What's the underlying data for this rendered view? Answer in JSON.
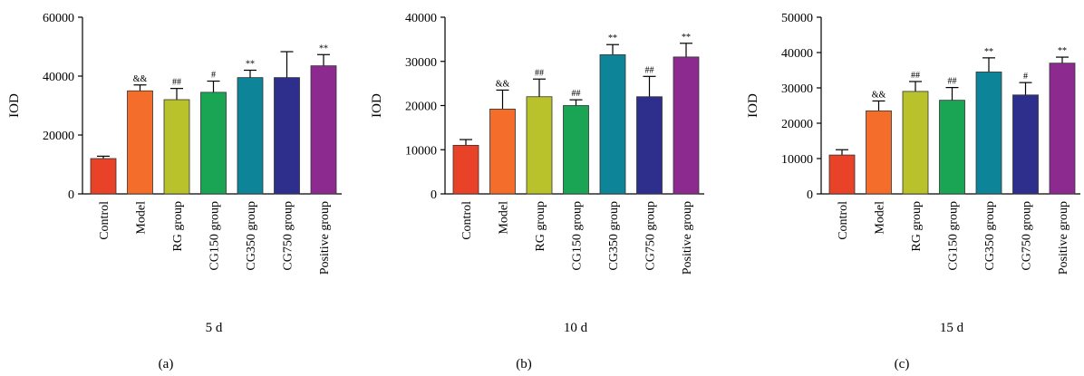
{
  "colors": {
    "Control": "#e84328",
    "Model": "#f46d2a",
    "RG group": "#b9c12b",
    "CG150 group": "#1aa555",
    "CG350 group": "#0d8498",
    "CG750 group": "#2e2f8c",
    "Positive group": "#8c2a90"
  },
  "chart_data": [
    {
      "type": "bar",
      "panel_label": "(a)",
      "xlabel": "5 d",
      "ylabel": "IOD",
      "ylim": [
        0,
        60000
      ],
      "yticks": [
        0,
        20000,
        40000,
        60000
      ],
      "categories": [
        "Control",
        "Model",
        "RG group",
        "CG150 group",
        "CG350 group",
        "CG750 group",
        "Positive group"
      ],
      "values": [
        12000,
        35000,
        32000,
        34500,
        39500,
        39500,
        43500
      ],
      "errors": [
        800,
        2000,
        3800,
        3800,
        2500,
        8800,
        3800
      ],
      "annotations": [
        "",
        "&&",
        "##",
        "#",
        "**",
        "",
        "**"
      ]
    },
    {
      "type": "bar",
      "panel_label": "(b)",
      "xlabel": "10 d",
      "ylabel": "IOD",
      "ylim": [
        0,
        40000
      ],
      "yticks": [
        0,
        10000,
        20000,
        30000,
        40000
      ],
      "categories": [
        "Control",
        "Model",
        "RG group",
        "CG150 group",
        "CG350 group",
        "CG750 group",
        "Positive group"
      ],
      "values": [
        11000,
        19200,
        22000,
        20000,
        31500,
        22000,
        31000
      ],
      "errors": [
        1300,
        4300,
        4000,
        1300,
        2300,
        4600,
        3100
      ],
      "annotations": [
        "",
        "&&",
        "##",
        "##",
        "**",
        "##",
        "**"
      ]
    },
    {
      "type": "bar",
      "panel_label": "(c)",
      "xlabel": "15 d",
      "ylabel": "IOD",
      "ylim": [
        0,
        50000
      ],
      "yticks": [
        0,
        10000,
        20000,
        30000,
        40000,
        50000
      ],
      "categories": [
        "Control",
        "Model",
        "RG group",
        "CG150 group",
        "CG350 group",
        "CG750 group",
        "Positive group"
      ],
      "values": [
        11000,
        23500,
        29000,
        26500,
        34500,
        28000,
        37000
      ],
      "errors": [
        1500,
        2800,
        2800,
        3600,
        4000,
        3500,
        1700
      ],
      "annotations": [
        "",
        "&&",
        "##",
        "##",
        "**",
        "#",
        "**"
      ]
    }
  ]
}
